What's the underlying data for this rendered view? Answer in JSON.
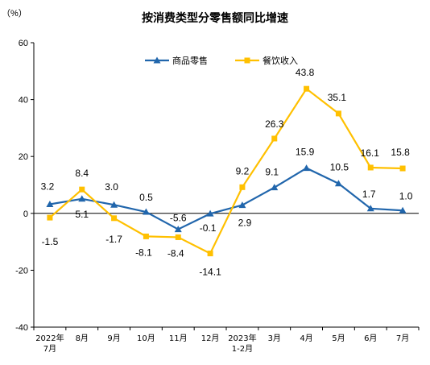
{
  "chart_data": {
    "type": "line",
    "title": "按消费类型分零售额同比增速",
    "unit": "（%）",
    "categories": [
      [
        "2022年",
        "7月"
      ],
      [
        "8月"
      ],
      [
        "9月"
      ],
      [
        "10月"
      ],
      [
        "11月"
      ],
      [
        "12月"
      ],
      [
        "2023年",
        "1-2月"
      ],
      [
        "3月"
      ],
      [
        "4月"
      ],
      [
        "5月"
      ],
      [
        "6月"
      ],
      [
        "7月"
      ]
    ],
    "ylim": [
      -40,
      60
    ],
    "yticks": [
      -40,
      -20,
      0,
      20,
      40,
      60
    ],
    "legend_position": "top-center",
    "series": [
      {
        "name": "商品零售",
        "color": "#2166AC",
        "marker": "triangle",
        "values": [
          3.2,
          5.1,
          3.0,
          0.5,
          -5.6,
          -0.1,
          2.9,
          9.1,
          15.9,
          10.5,
          1.7,
          1.0
        ],
        "labels": [
          "3.2",
          "5.1",
          "3.0",
          "0.5",
          "-5.6",
          "-0.1",
          "2.9",
          "9.1",
          "15.9",
          "10.5",
          "1.7",
          "1.0"
        ]
      },
      {
        "name": "餐饮收入",
        "color": "#FFC000",
        "marker": "square",
        "values": [
          -1.5,
          8.4,
          -1.7,
          -8.1,
          -8.4,
          -14.1,
          9.2,
          26.3,
          43.8,
          35.1,
          16.1,
          15.8
        ],
        "labels": [
          "-1.5",
          "8.4",
          "-1.7",
          "-8.1",
          "-8.4",
          "-14.1",
          "9.2",
          "26.3",
          "43.8",
          "35.1",
          "16.1",
          "15.8"
        ]
      }
    ]
  }
}
